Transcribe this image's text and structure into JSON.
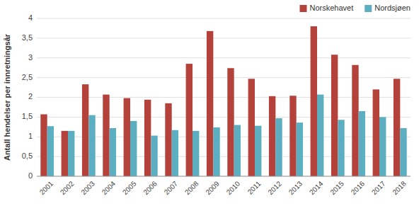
{
  "chart_data": {
    "type": "bar",
    "y_label": "Antall hendelser per innretningsår",
    "categories": [
      "2001",
      "2002",
      "2003",
      "2004",
      "2005",
      "2006",
      "2007",
      "2008",
      "2009",
      "2010",
      "2011",
      "2012",
      "2013",
      "2014",
      "2015",
      "2016",
      "2017",
      "2018"
    ],
    "series": [
      {
        "name": "Norskehavet",
        "color": "#b5413b",
        "values": [
          1.57,
          1.15,
          2.33,
          2.07,
          1.98,
          1.94,
          1.85,
          2.85,
          3.68,
          2.74,
          2.47,
          2.03,
          2.04,
          3.8,
          3.08,
          2.82,
          2.2,
          2.47
        ]
      },
      {
        "name": "Nordsjøen",
        "color": "#5bafc1",
        "values": [
          1.27,
          1.15,
          1.55,
          1.22,
          1.4,
          1.03,
          1.17,
          1.15,
          1.24,
          1.3,
          1.28,
          1.47,
          1.36,
          2.07,
          1.43,
          1.65,
          1.5,
          1.22
        ]
      }
    ],
    "ylim": [
      0,
      4.0
    ],
    "yticks": [
      0,
      {
        "value": 0.5,
        "label": "0,5"
      },
      1,
      {
        "value": 1.5,
        "label": "1,5"
      },
      2,
      {
        "value": 2.5,
        "label": "2,5"
      },
      3,
      {
        "value": 3.5,
        "label": "3,5"
      },
      4
    ],
    "grid": true,
    "legend": "upper right"
  }
}
